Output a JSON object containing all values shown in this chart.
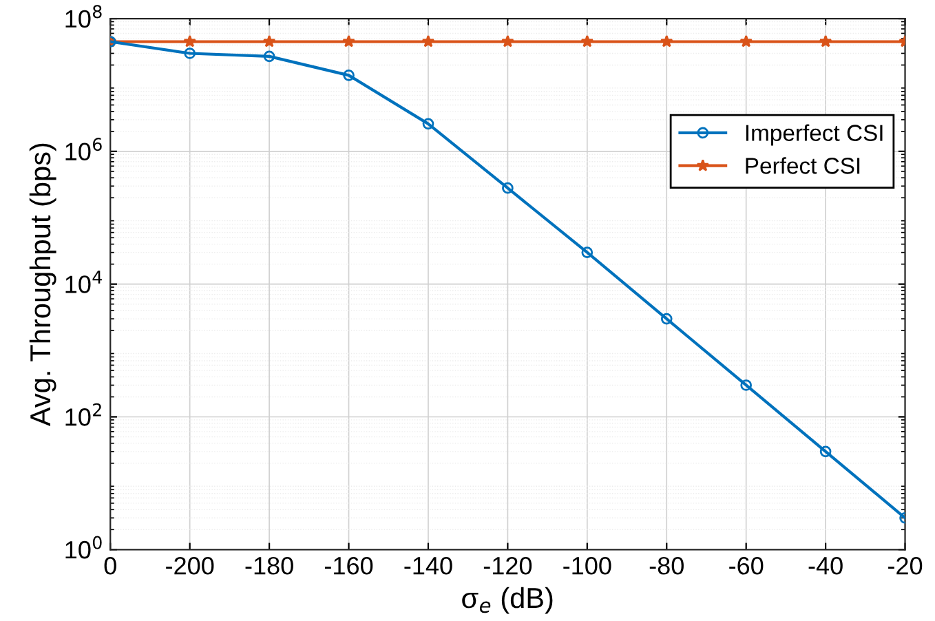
{
  "chart_data": {
    "type": "line",
    "xlabel": "σ$_{e}$ (dB)",
    "ylabel": "Avg. Throughput (bps)",
    "categories": [
      "0",
      "-200",
      "-180",
      "-160",
      "-140",
      "-120",
      "-100",
      "-80",
      "-60",
      "-40",
      "-20"
    ],
    "series": [
      {
        "name": "Imperfect CSI",
        "color": "#0072bd",
        "marker": "circle",
        "values": [
          45000000,
          30000000,
          27000000,
          14000000,
          2600000,
          280000,
          30000,
          3000,
          300,
          30,
          3
        ]
      },
      {
        "name": "Perfect CSI",
        "color": "#d95319",
        "marker": "star",
        "values": [
          45000000,
          45000000,
          45000000,
          45000000,
          45000000,
          45000000,
          45000000,
          45000000,
          45000000,
          45000000,
          45000000
        ]
      }
    ],
    "log": "y",
    "ylim": [
      1,
      100000000
    ],
    "yticks": [
      {
        "value": 1,
        "label": "10$^{0}$"
      },
      {
        "value": 100,
        "label": "10$^{2}$"
      },
      {
        "value": 10000,
        "label": "10$^{4}$"
      },
      {
        "value": 1000000,
        "label": "10$^{6}$"
      },
      {
        "value": 100000000,
        "label": "10$^{8}$"
      }
    ],
    "grid": true,
    "legend": "right",
    "line_style": "solid"
  }
}
